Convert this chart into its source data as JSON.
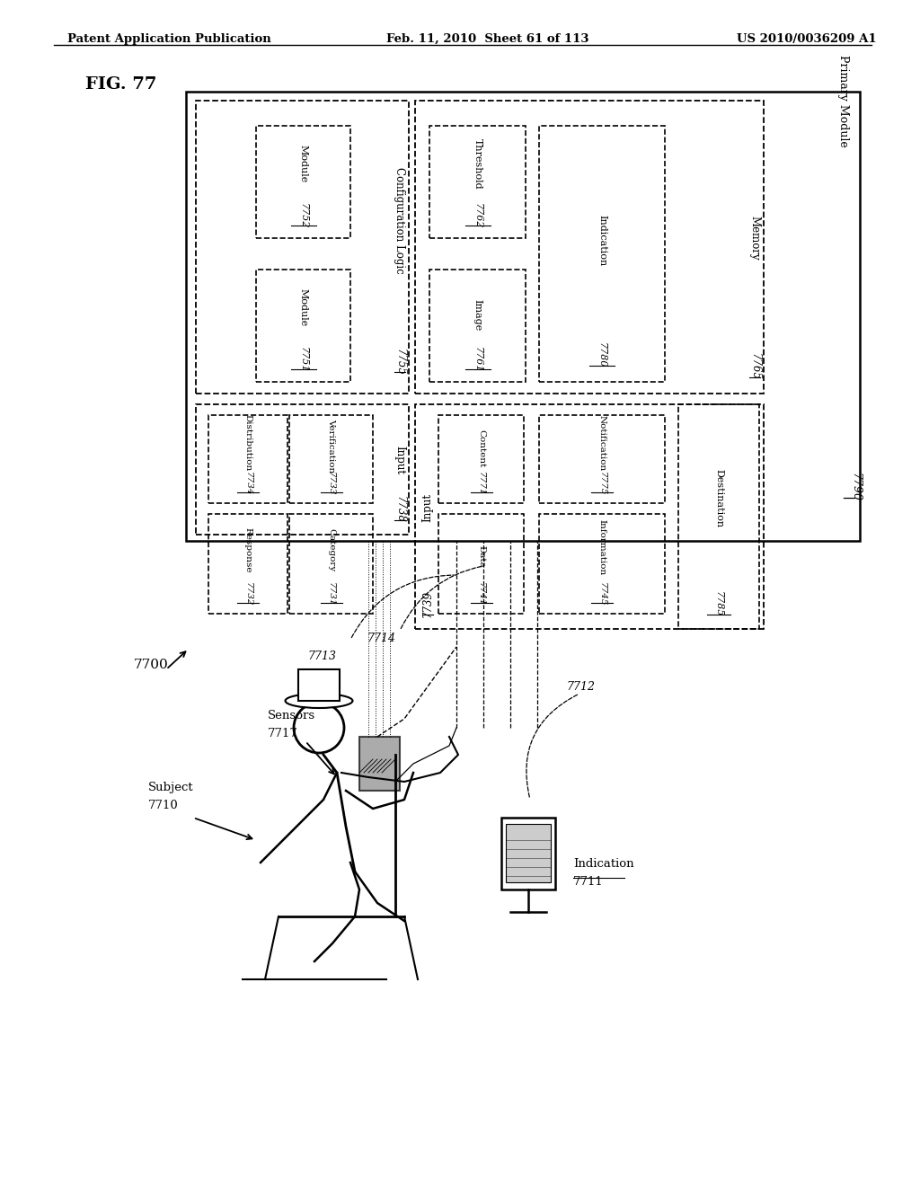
{
  "header_left": "Patent Application Publication",
  "header_center": "Feb. 11, 2010  Sheet 61 of 113",
  "header_right": "US 2010/0036209 A1",
  "fig_label": "FIG. 77",
  "bg": "#ffffff"
}
